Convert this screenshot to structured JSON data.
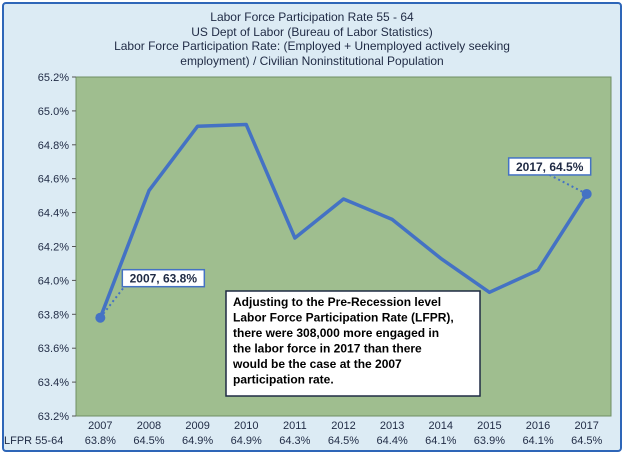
{
  "chart_data": {
    "type": "line",
    "title_lines": [
      "Labor Force Participation  Rate 55 - 64",
      "US Dept of Labor (Bureau of Labor Statistics)",
      "Labor Force Participation Rate: (Employed  + Unemployed  actively  seeking",
      "employment) / Civilian  Noninstitutional  Population"
    ],
    "categories": [
      "2007",
      "2008",
      "2009",
      "2010",
      "2011",
      "2012",
      "2013",
      "2014",
      "2015",
      "2016",
      "2017"
    ],
    "series": [
      {
        "name": "LFPR 55-64",
        "values": [
          63.78,
          64.53,
          64.91,
          64.92,
          64.25,
          64.48,
          64.36,
          64.13,
          63.93,
          64.06,
          64.51
        ],
        "table_labels": [
          "63.8%",
          "64.5%",
          "64.9%",
          "64.9%",
          "64.3%",
          "64.5%",
          "64.4%",
          "64.1%",
          "63.9%",
          "64.1%",
          "64.5%"
        ]
      }
    ],
    "yticks": [
      "63.2%",
      "63.4%",
      "63.6%",
      "63.8%",
      "64.0%",
      "64.2%",
      "64.4%",
      "64.6%",
      "64.8%",
      "65.0%",
      "65.2%"
    ],
    "ylim": [
      63.2,
      65.2
    ],
    "grid": false,
    "annotations": [
      {
        "text": "2007, 63.8%",
        "category": "2007"
      },
      {
        "text": "2017, 64.5%",
        "category": "2017"
      }
    ],
    "textbox": [
      "Adjusting to the Pre-Recession level",
      "Labor Force Participation Rate (LFPR),",
      "there were 308,000 more engaged in",
      "the labor force in 2017 than there",
      "would be the case at the 2007",
      "participation rate."
    ]
  },
  "colors": {
    "plot_background": "#9fbe8f",
    "line": "#4472c4",
    "frame_background": "#dcebf4",
    "frame_border": "#2e66b8",
    "text": "#1f2a44"
  }
}
